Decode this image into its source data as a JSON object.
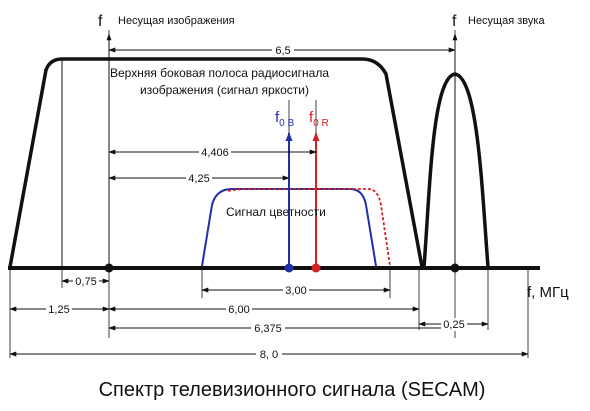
{
  "labels": {
    "picture_carrier": "Несущая изображения",
    "sound_carrier": "Несущая звука",
    "f_symbol": "f",
    "upper_sideband_line1": "Верхняя боковая полоса радиосигнала",
    "upper_sideband_line2": "изображения (сигнал яркости)",
    "f0b_main": "f",
    "f0b_sub": "0 B",
    "f0r_main": "f",
    "f0r_sub": "0 R",
    "chroma_signal": "Сигнал цветности",
    "axis_label": "f, МГц",
    "caption": "Спектр телевизионного сигнала (SECAM)"
  },
  "dimensions": {
    "d_6_5": "6,5",
    "d_4_406": "4,406",
    "d_4_25": "4,25",
    "d_0_75": "0,75",
    "d_1_25": "1,25",
    "d_3_00": "3,00",
    "d_6_00": "6,00",
    "d_6_375": "6,375",
    "d_0_25": "0,25",
    "d_8_0": "8, 0"
  },
  "colors": {
    "outline": "#111111",
    "chroma_blue": "#1f2fa8",
    "chroma_red": "#d42020"
  }
}
